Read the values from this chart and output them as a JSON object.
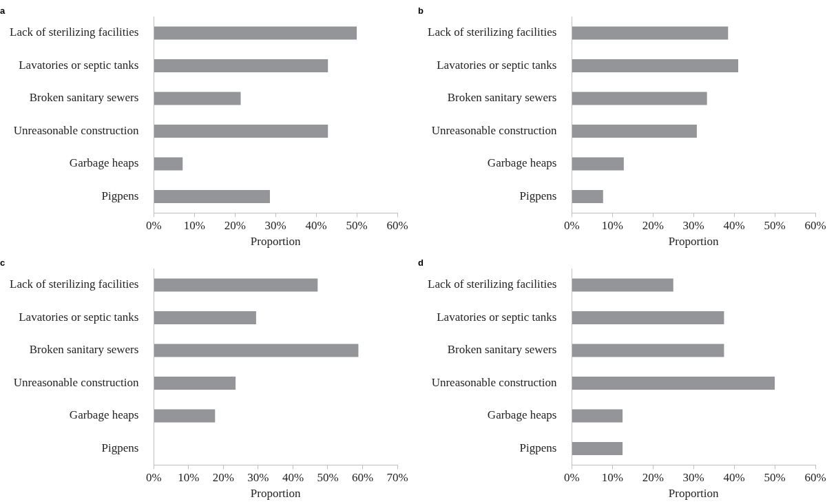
{
  "chart_data": [
    {
      "type": "bar",
      "title": "a",
      "orientation": "horizontal",
      "xlabel": "Proportion",
      "categories": [
        "Lack of sterilizing facilities",
        "Lavatories or septic tanks",
        "Broken sanitary sewers",
        "Unreasonable construction",
        "Garbage heaps",
        "Pigpens"
      ],
      "values": [
        50,
        42.9,
        21.4,
        42.9,
        7.1,
        28.6
      ],
      "color": "#939598",
      "xlim": [
        0,
        60
      ],
      "xticks": [
        {
          "value": 0,
          "label": "0%"
        },
        {
          "value": 10,
          "label": "10%"
        },
        {
          "value": 20,
          "label": "20%"
        },
        {
          "value": 30,
          "label": "30%"
        },
        {
          "value": 40,
          "label": "40%"
        },
        {
          "value": 50,
          "label": "50%"
        },
        {
          "value": 60,
          "label": "60%"
        }
      ]
    },
    {
      "type": "bar",
      "title": "b",
      "orientation": "horizontal",
      "xlabel": "Proportion",
      "categories": [
        "Lack of sterilizing facilities",
        "Lavatories or septic tanks",
        "Broken sanitary sewers",
        "Unreasonable construction",
        "Garbage heaps",
        "Pigpens"
      ],
      "values": [
        38.5,
        41.0,
        33.3,
        30.8,
        12.8,
        7.7
      ],
      "color": "#939598",
      "xlim": [
        0,
        60
      ],
      "xticks": [
        {
          "value": 0,
          "label": "0%"
        },
        {
          "value": 10,
          "label": "10%"
        },
        {
          "value": 20,
          "label": "20%"
        },
        {
          "value": 30,
          "label": "30%"
        },
        {
          "value": 40,
          "label": "40%"
        },
        {
          "value": 50,
          "label": "50%"
        },
        {
          "value": 60,
          "label": "60%"
        }
      ]
    },
    {
      "type": "bar",
      "title": "c",
      "orientation": "horizontal",
      "xlabel": "Proportion",
      "categories": [
        "Lack of sterilizing facilities",
        "Lavatories or septic tanks",
        "Broken sanitary sewers",
        "Unreasonable construction",
        "Garbage heaps",
        "Pigpens"
      ],
      "values": [
        47.1,
        29.4,
        58.8,
        23.5,
        17.6,
        0
      ],
      "color": "#939598",
      "xlim": [
        0,
        70
      ],
      "xticks": [
        {
          "value": 0,
          "label": "0%"
        },
        {
          "value": 10,
          "label": "10%"
        },
        {
          "value": 20,
          "label": "20%"
        },
        {
          "value": 30,
          "label": "30%"
        },
        {
          "value": 40,
          "label": "40%"
        },
        {
          "value": 50,
          "label": "50%"
        },
        {
          "value": 60,
          "label": "60%"
        },
        {
          "value": 70,
          "label": "70%"
        }
      ]
    },
    {
      "type": "bar",
      "title": "d",
      "orientation": "horizontal",
      "xlabel": "Proportion",
      "categories": [
        "Lack of sterilizing facilities",
        "Lavatories or septic tanks",
        "Broken sanitary sewers",
        "Unreasonable construction",
        "Garbage heaps",
        "Pigpens"
      ],
      "values": [
        25,
        37.5,
        37.5,
        50,
        12.5,
        12.5
      ],
      "color": "#939598",
      "xlim": [
        0,
        60
      ],
      "xticks": [
        {
          "value": 0,
          "label": "0%"
        },
        {
          "value": 10,
          "label": "10%"
        },
        {
          "value": 20,
          "label": "20%"
        },
        {
          "value": 30,
          "label": "30%"
        },
        {
          "value": 40,
          "label": "40%"
        },
        {
          "value": 50,
          "label": "50%"
        },
        {
          "value": 60,
          "label": "60%"
        }
      ]
    }
  ]
}
